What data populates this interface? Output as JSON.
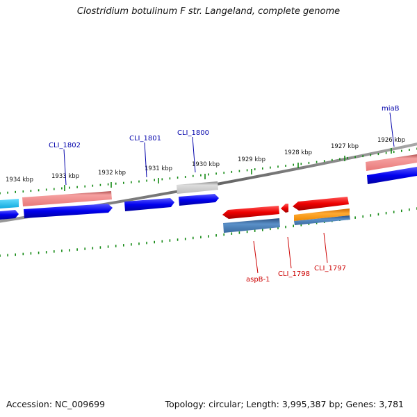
{
  "title": "Clostridium botulinum F str. Langeland, complete genome",
  "footer": {
    "accession_label": "Accession:",
    "accession": "NC_009699",
    "topology_label": "Topology:",
    "topology": "circular",
    "length_label": "Length:",
    "length": "3,995,387 bp",
    "genes_label": "Genes:",
    "genes": "3,781"
  },
  "ruler": [
    "1934 kbp",
    "1933 kbp",
    "1932 kbp",
    "1931 kbp",
    "1930 kbp",
    "1929 kbp",
    "1928 kbp",
    "1927 kbp",
    "1926 kbp"
  ],
  "genes_forward": [
    {
      "name": "CLI_1802",
      "color": "#0000aa"
    },
    {
      "name": "CLI_1801",
      "color": "#0000aa"
    },
    {
      "name": "CLI_1800",
      "color": "#0000aa"
    },
    {
      "name": "miaB",
      "color": "#0000aa"
    }
  ],
  "genes_reverse": [
    {
      "name": "aspB-1",
      "color": "#cc0000"
    },
    {
      "name": "CLI_1798",
      "color": "#cc0000"
    },
    {
      "name": "CLI_1797",
      "color": "#cc0000"
    }
  ],
  "colors": {
    "cds": "#0000ee",
    "cds_reverse": "#ee0000",
    "gene_forward": "#e8787c",
    "gene_reverse": "#4a7fb5",
    "gene_forward_light": "#22bbee",
    "pseudo": "#bbbbbb",
    "misc": "#ff9900",
    "backbone": "#777777",
    "ticks": "#118811"
  }
}
